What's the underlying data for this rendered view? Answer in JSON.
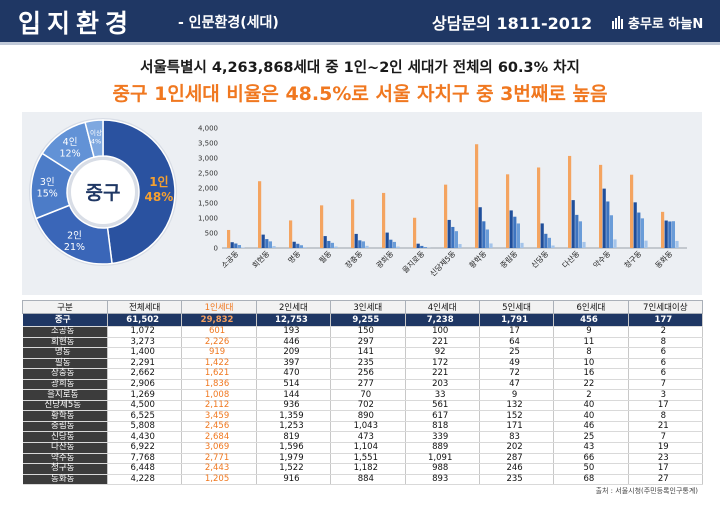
{
  "header": {
    "title": "입지환경",
    "subtitle": "- 인문환경(세대)",
    "inquiry_label": "상담문의 1811-2012",
    "brand": "충무로 하늘N"
  },
  "headline": {
    "line1": "서울특별시 4,263,868세대 중 1인~2인 세대가 전체의 60.3% 차지",
    "line2": "중구 1인세대 비율은 48.5%로 서울 자치구 중 3번째로 높음"
  },
  "source": "출처 : 서울시청(주민등록인구통계)",
  "colors": {
    "header_bg": "#1f3764",
    "accent_orange": "#f07820",
    "bar_series": [
      "#f4a460",
      "#1f4e9a",
      "#3d74c0",
      "#6a9cd8",
      "#a4c4ea"
    ],
    "donut": [
      "#2a52a0",
      "#3a66b8",
      "#4c7cc8",
      "#6292d6",
      "#7ea8e0"
    ]
  },
  "chart_data": [
    {
      "type": "pie",
      "center_label": "중구",
      "slices": [
        {
          "name": "1인",
          "value": 48,
          "label": "48%"
        },
        {
          "name": "2인",
          "value": 21,
          "label": "21%"
        },
        {
          "name": "3인",
          "value": 15,
          "label": "15%"
        },
        {
          "name": "4인",
          "value": 12,
          "label": "12%"
        },
        {
          "name": "이상",
          "value": 4,
          "label": "4%"
        }
      ]
    },
    {
      "type": "bar",
      "categories": [
        "소공동",
        "회현동",
        "명동",
        "필동",
        "장충동",
        "광희동",
        "을지로동",
        "신당제5동",
        "황학동",
        "중림동",
        "신당동",
        "다산동",
        "약수동",
        "청구동",
        "동화동"
      ],
      "series": [
        {
          "values": [
            601,
            2226,
            919,
            1422,
            1621,
            1836,
            1008,
            2112,
            3459,
            2456,
            2684,
            3069,
            2771,
            2443,
            1205
          ]
        },
        {
          "values": [
            193,
            446,
            209,
            397,
            470,
            514,
            144,
            936,
            1359,
            1253,
            819,
            1596,
            1979,
            1522,
            916
          ]
        },
        {
          "values": [
            150,
            297,
            141,
            235,
            256,
            277,
            70,
            702,
            890,
            1043,
            473,
            1104,
            1551,
            1182,
            884
          ]
        },
        {
          "values": [
            100,
            221,
            92,
            172,
            221,
            203,
            33,
            561,
            617,
            818,
            339,
            889,
            1091,
            988,
            893
          ]
        },
        {
          "values": [
            17,
            64,
            25,
            49,
            72,
            47,
            9,
            132,
            152,
            171,
            83,
            202,
            287,
            246,
            235
          ]
        }
      ],
      "ylim": [
        0,
        4000
      ],
      "yticks": [
        "0",
        "500",
        "1,000",
        "1,500",
        "2,000",
        "2,500",
        "3,000",
        "3,500",
        "4,000"
      ]
    }
  ],
  "table": {
    "headers": [
      "구분",
      "전체세대",
      "1인세대",
      "2인세대",
      "3인세대",
      "4인세대",
      "5인세대",
      "6인세대",
      "7인세대이상"
    ],
    "rows": [
      [
        "중구",
        "61,502",
        "29,832",
        "12,753",
        "9,255",
        "7,238",
        "1,791",
        "456",
        "177"
      ],
      [
        "소공동",
        "1,072",
        "601",
        "193",
        "150",
        "100",
        "17",
        "9",
        "2"
      ],
      [
        "회현동",
        "3,273",
        "2,226",
        "446",
        "297",
        "221",
        "64",
        "11",
        "8"
      ],
      [
        "명동",
        "1,400",
        "919",
        "209",
        "141",
        "92",
        "25",
        "8",
        "6"
      ],
      [
        "필동",
        "2,291",
        "1,422",
        "397",
        "235",
        "172",
        "49",
        "10",
        "6"
      ],
      [
        "장충동",
        "2,662",
        "1,621",
        "470",
        "256",
        "221",
        "72",
        "16",
        "6"
      ],
      [
        "광희동",
        "2,906",
        "1,836",
        "514",
        "277",
        "203",
        "47",
        "22",
        "7"
      ],
      [
        "을지로동",
        "1,269",
        "1,008",
        "144",
        "70",
        "33",
        "9",
        "2",
        "3"
      ],
      [
        "신당제5동",
        "4,500",
        "2,112",
        "936",
        "702",
        "561",
        "132",
        "40",
        "17"
      ],
      [
        "황학동",
        "6,525",
        "3,459",
        "1,359",
        "890",
        "617",
        "152",
        "40",
        "8"
      ],
      [
        "중림동",
        "5,808",
        "2,456",
        "1,253",
        "1,043",
        "818",
        "171",
        "46",
        "21"
      ],
      [
        "신당동",
        "4,430",
        "2,684",
        "819",
        "473",
        "339",
        "83",
        "25",
        "7"
      ],
      [
        "다산동",
        "6,922",
        "3,069",
        "1,596",
        "1,104",
        "889",
        "202",
        "43",
        "19"
      ],
      [
        "약수동",
        "7,768",
        "2,771",
        "1,979",
        "1,551",
        "1,091",
        "287",
        "66",
        "23"
      ],
      [
        "청구동",
        "6,448",
        "2,443",
        "1,522",
        "1,182",
        "988",
        "246",
        "50",
        "17"
      ],
      [
        "동화동",
        "4,228",
        "1,205",
        "916",
        "884",
        "893",
        "235",
        "68",
        "27"
      ]
    ]
  }
}
